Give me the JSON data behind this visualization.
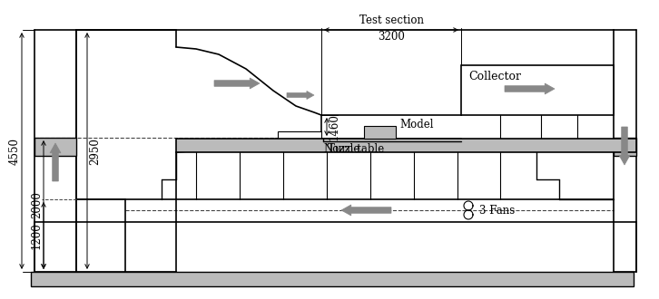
{
  "bg_color": "#ffffff",
  "line_color": "#000000",
  "gray_fill": "#999999",
  "light_gray": "#bbbbbb",
  "arrow_color": "#888888",
  "labels": {
    "test_section": "Test section",
    "width_3200": "3200",
    "height_1460": "1460",
    "model": "Model",
    "turn_table": "Turn table",
    "nozzle": "Nozzle",
    "collector": "Collector",
    "fans": "3 Fans",
    "dim_4550": "4550",
    "dim_2000": "2000",
    "dim_2950": "2950",
    "dim_1200": "1200"
  }
}
